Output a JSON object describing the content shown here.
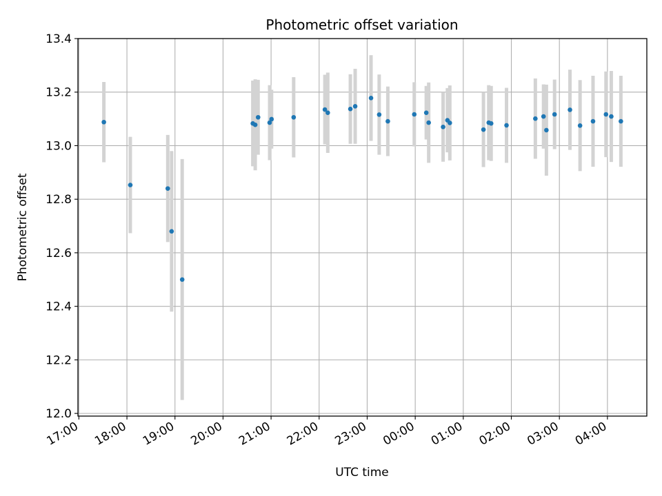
{
  "chart_data": {
    "type": "scatter",
    "title": "Photometric offset variation",
    "xlabel": "UTC time",
    "ylabel": "Photometric offset",
    "x_unit": "hours since 17:00 UTC",
    "xlim": [
      -0.02,
      11.82
    ],
    "ylim": [
      11.99,
      13.4
    ],
    "grid": true,
    "x_ticks": [
      {
        "value": 0,
        "label": "17:00"
      },
      {
        "value": 1,
        "label": "18:00"
      },
      {
        "value": 2,
        "label": "19:00"
      },
      {
        "value": 3,
        "label": "20:00"
      },
      {
        "value": 4,
        "label": "21:00"
      },
      {
        "value": 5,
        "label": "22:00"
      },
      {
        "value": 6,
        "label": "23:00"
      },
      {
        "value": 7,
        "label": "00:00"
      },
      {
        "value": 8,
        "label": "01:00"
      },
      {
        "value": 9,
        "label": "02:00"
      },
      {
        "value": 10,
        "label": "03:00"
      },
      {
        "value": 11,
        "label": "04:00"
      }
    ],
    "y_ticks": [
      {
        "value": 12.0,
        "label": "12.0"
      },
      {
        "value": 12.2,
        "label": "12.2"
      },
      {
        "value": 12.4,
        "label": "12.4"
      },
      {
        "value": 12.6,
        "label": "12.6"
      },
      {
        "value": 12.8,
        "label": "12.8"
      },
      {
        "value": 13.0,
        "label": "13.0"
      },
      {
        "value": 13.2,
        "label": "13.2"
      },
      {
        "value": 13.4,
        "label": "13.4"
      }
    ],
    "point_color": "#1f77b4",
    "errorbar_color": "#d3d3d3",
    "series": [
      {
        "name": "Photometric offset",
        "points": [
          {
            "x": 0.52,
            "y": 13.088,
            "err": 0.15
          },
          {
            "x": 1.07,
            "y": 12.853,
            "err": 0.18
          },
          {
            "x": 1.85,
            "y": 12.84,
            "err": 0.2
          },
          {
            "x": 1.93,
            "y": 12.68,
            "err": 0.3
          },
          {
            "x": 2.15,
            "y": 12.5,
            "err": 0.45
          },
          {
            "x": 3.62,
            "y": 13.083,
            "err": 0.16
          },
          {
            "x": 3.67,
            "y": 13.078,
            "err": 0.17
          },
          {
            "x": 3.73,
            "y": 13.106,
            "err": 0.14
          },
          {
            "x": 3.97,
            "y": 13.086,
            "err": 0.14
          },
          {
            "x": 4.01,
            "y": 13.099,
            "err": 0.11
          },
          {
            "x": 4.47,
            "y": 13.106,
            "err": 0.15
          },
          {
            "x": 5.12,
            "y": 13.135,
            "err": 0.13
          },
          {
            "x": 5.18,
            "y": 13.123,
            "err": 0.15
          },
          {
            "x": 5.65,
            "y": 13.137,
            "err": 0.13
          },
          {
            "x": 5.75,
            "y": 13.147,
            "err": 0.14
          },
          {
            "x": 6.08,
            "y": 13.178,
            "err": 0.16
          },
          {
            "x": 6.25,
            "y": 13.116,
            "err": 0.15
          },
          {
            "x": 6.43,
            "y": 13.091,
            "err": 0.13
          },
          {
            "x": 6.98,
            "y": 13.117,
            "err": 0.12
          },
          {
            "x": 7.23,
            "y": 13.123,
            "err": 0.1
          },
          {
            "x": 7.28,
            "y": 13.086,
            "err": 0.15
          },
          {
            "x": 7.58,
            "y": 13.07,
            "err": 0.13
          },
          {
            "x": 7.67,
            "y": 13.095,
            "err": 0.12
          },
          {
            "x": 7.72,
            "y": 13.085,
            "err": 0.14
          },
          {
            "x": 8.42,
            "y": 13.06,
            "err": 0.14
          },
          {
            "x": 8.53,
            "y": 13.086,
            "err": 0.14
          },
          {
            "x": 8.58,
            "y": 13.083,
            "err": 0.14
          },
          {
            "x": 8.9,
            "y": 13.076,
            "err": 0.14
          },
          {
            "x": 9.5,
            "y": 13.101,
            "err": 0.15
          },
          {
            "x": 9.67,
            "y": 13.109,
            "err": 0.12
          },
          {
            "x": 9.73,
            "y": 13.058,
            "err": 0.17
          },
          {
            "x": 9.9,
            "y": 13.117,
            "err": 0.13
          },
          {
            "x": 10.22,
            "y": 13.134,
            "err": 0.15
          },
          {
            "x": 10.43,
            "y": 13.075,
            "err": 0.17
          },
          {
            "x": 10.7,
            "y": 13.091,
            "err": 0.17
          },
          {
            "x": 10.97,
            "y": 13.117,
            "err": 0.16
          },
          {
            "x": 11.08,
            "y": 13.109,
            "err": 0.17
          },
          {
            "x": 11.28,
            "y": 13.091,
            "err": 0.17
          }
        ]
      }
    ]
  }
}
